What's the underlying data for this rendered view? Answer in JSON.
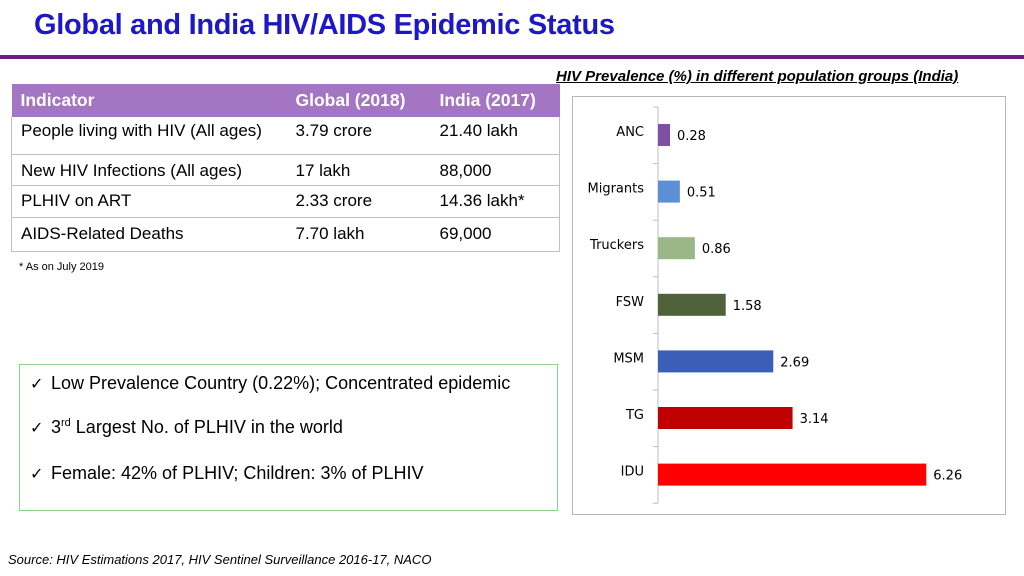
{
  "title": "Global and India HIV/AIDS Epidemic Status",
  "table": {
    "headers": [
      "Indicator",
      "Global (2018)",
      "India (2017)"
    ],
    "rows": [
      [
        "People living with HIV (All ages)",
        "3.79 crore",
        "21.40 lakh"
      ],
      [
        "New HIV Infections (All ages)",
        "17 lakh",
        "88,000"
      ],
      [
        "PLHIV on ART",
        "2.33 crore",
        "14.36 lakh*"
      ],
      [
        "AIDS-Related Deaths",
        "7.70 lakh",
        "69,000"
      ]
    ]
  },
  "footnote": "* As on July 2019",
  "facts": {
    "f1": "Low Prevalence Country (0.22%); Concentrated epidemic",
    "f2_sup": "rd",
    "f2_pre": "3",
    "f2_post": " Largest No. of PLHIV in the world",
    "f3": "Female: 42% of PLHIV; Children: 3% of PLHIV"
  },
  "source": "Source: HIV Estimations 2017, HIV Sentinel Surveillance 2016-17, NACO",
  "chart_data": {
    "type": "bar",
    "orientation": "horizontal",
    "title": "HIV Prevalence (%) in different population groups (India)",
    "categories": [
      "ANC",
      "Migrants",
      "Truckers",
      "FSW",
      "MSM",
      "TG",
      "IDU"
    ],
    "values": [
      0.28,
      0.51,
      0.86,
      1.58,
      2.69,
      3.14,
      6.26
    ],
    "value_labels": [
      "0.28",
      "0.51",
      "0.86",
      "1.58",
      "2.69",
      "3.14",
      "6.26"
    ],
    "colors": [
      "#7f4fa1",
      "#5b8fd6",
      "#9bb687",
      "#4f6239",
      "#3b5fb6",
      "#c00000",
      "#ff0000"
    ],
    "xlim": [
      0,
      7
    ],
    "grid": false
  }
}
